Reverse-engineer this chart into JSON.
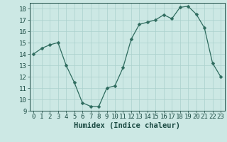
{
  "x": [
    0,
    1,
    2,
    3,
    4,
    5,
    6,
    7,
    8,
    9,
    10,
    11,
    12,
    13,
    14,
    15,
    16,
    17,
    18,
    19,
    20,
    21,
    22,
    23
  ],
  "y": [
    14.0,
    14.5,
    14.8,
    15.0,
    13.0,
    11.5,
    9.7,
    9.4,
    9.35,
    11.0,
    11.2,
    12.8,
    15.3,
    16.6,
    16.8,
    17.0,
    17.45,
    17.1,
    18.1,
    18.2,
    17.5,
    16.3,
    13.2,
    12.0
  ],
  "line_color": "#2e6b5e",
  "marker": "D",
  "marker_size": 2.5,
  "bg_color": "#cce8e4",
  "grid_color": "#aad0cc",
  "xlabel": "Humidex (Indice chaleur)",
  "xlim": [
    -0.5,
    23.5
  ],
  "ylim": [
    9,
    18.5
  ],
  "yticks": [
    9,
    10,
    11,
    12,
    13,
    14,
    15,
    16,
    17,
    18
  ],
  "xticks": [
    0,
    1,
    2,
    3,
    4,
    5,
    6,
    7,
    8,
    9,
    10,
    11,
    12,
    13,
    14,
    15,
    16,
    17,
    18,
    19,
    20,
    21,
    22,
    23
  ],
  "xlabel_fontsize": 7.5,
  "tick_fontsize": 6.5,
  "label_color": "#1a4a42"
}
